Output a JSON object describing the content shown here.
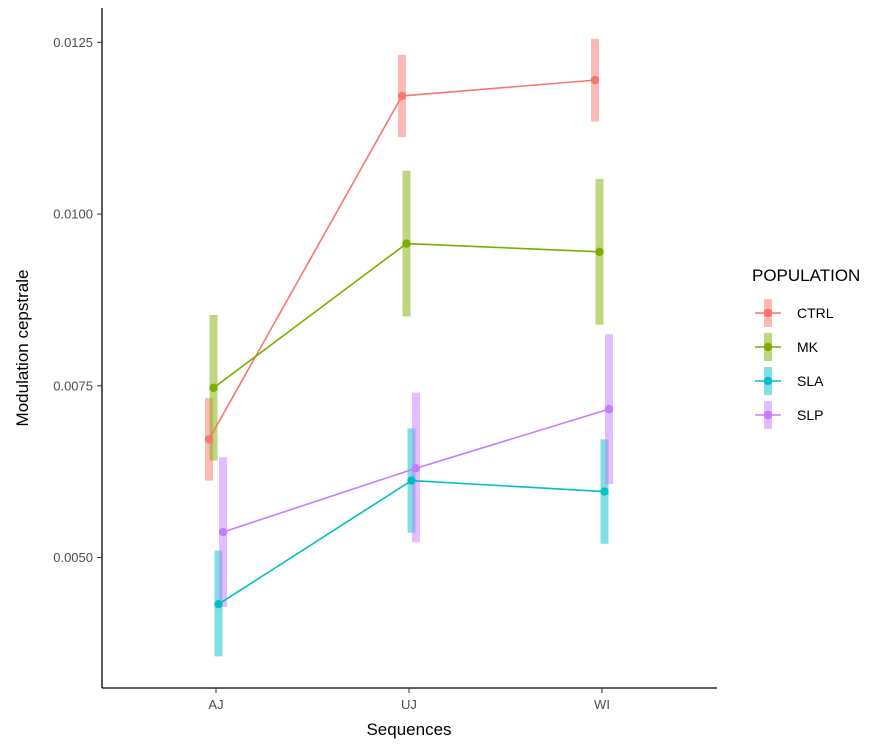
{
  "chart_data": {
    "type": "line",
    "xlabel": "Sequences",
    "ylabel": "Modulation cepstrale",
    "categories": [
      "AJ",
      "UJ",
      "WI"
    ],
    "ylim": [
      0.0031,
      0.013
    ],
    "yticks": [
      0.005,
      0.0075,
      0.01,
      0.0125
    ],
    "ytick_labels": [
      "0.0050",
      "0.0075",
      "0.0100",
      "0.0125"
    ],
    "grid": false,
    "legend": {
      "title": "POPULATION",
      "position": "right"
    },
    "series": [
      {
        "name": "CTRL",
        "color": "#F8766D",
        "values": [
          0.00672,
          0.01172,
          0.01195
        ],
        "lower": [
          0.00612,
          0.01112,
          0.01135
        ],
        "upper": [
          0.00732,
          0.01232,
          0.01255
        ]
      },
      {
        "name": "MK",
        "color": "#7CAE00",
        "values": [
          0.00747,
          0.00957,
          0.00945
        ],
        "lower": [
          0.00641,
          0.00851,
          0.00839
        ],
        "upper": [
          0.00853,
          0.01063,
          0.01051
        ]
      },
      {
        "name": "SLA",
        "color": "#00BFC4",
        "values": [
          0.00432,
          0.00612,
          0.00596
        ],
        "lower": [
          0.00356,
          0.00536,
          0.0052
        ],
        "upper": [
          0.0051,
          0.00688,
          0.00672
        ]
      },
      {
        "name": "SLP",
        "color": "#C77CFF",
        "values": [
          0.00537,
          0.0063,
          0.00716
        ],
        "lower": [
          0.00428,
          0.00522,
          0.00607
        ],
        "upper": [
          0.00646,
          0.0074,
          0.00825
        ]
      }
    ]
  }
}
